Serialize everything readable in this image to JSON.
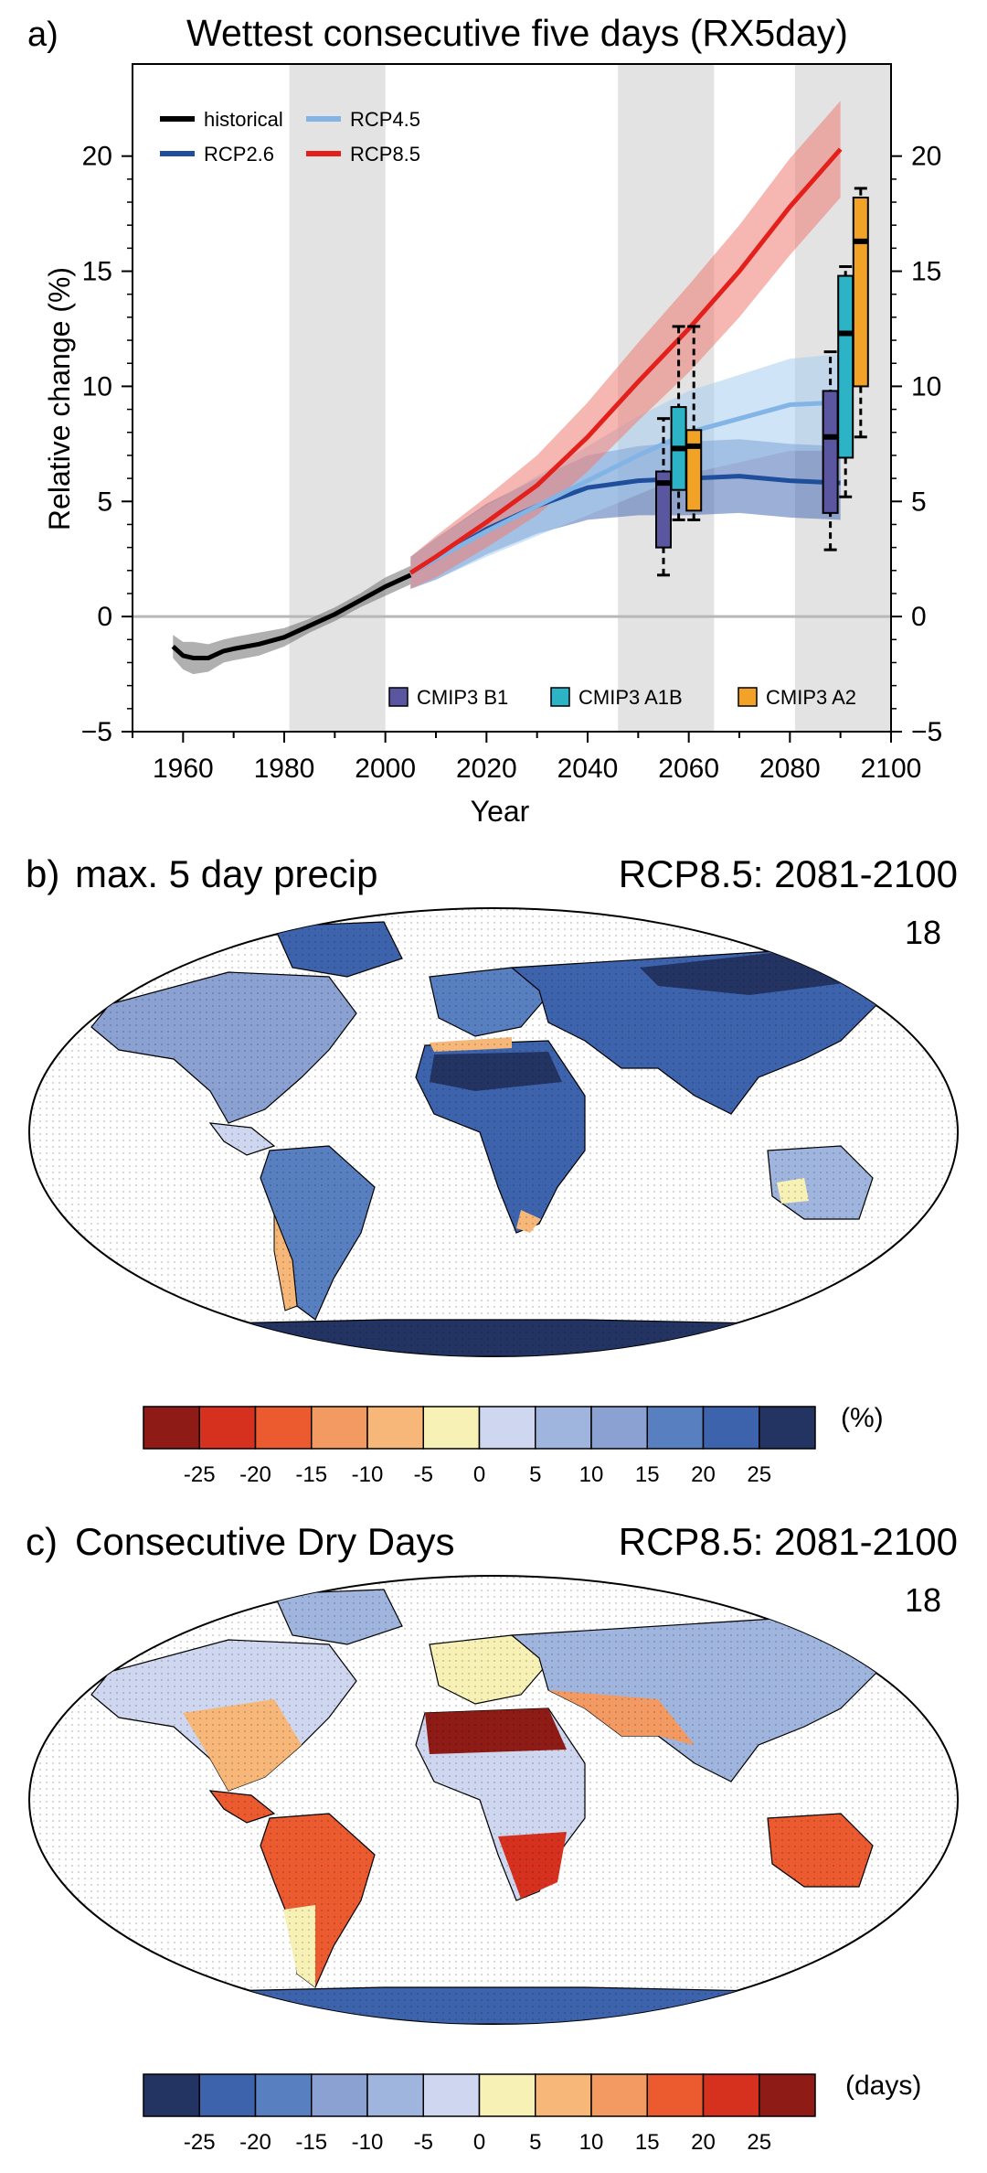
{
  "panel_a": {
    "label": "a)",
    "title": "Wettest consecutive five days (RX5day)",
    "ylabel": "Relative change (%)",
    "xlabel": "Year"
  },
  "panel_b": {
    "label": "b)",
    "title": "max. 5 day precip",
    "scenario": "RCP8.5: 2081-2100",
    "model_count": "18",
    "colorbar_unit": "(%)",
    "colorbar_ticks": [
      "-25",
      "-20",
      "-15",
      "-10",
      "-5",
      "0",
      "5",
      "10",
      "15",
      "20",
      "25"
    ],
    "colorbar_colors": [
      "#8e1b16",
      "#d6301f",
      "#ec5a30",
      "#f39962",
      "#f6b778",
      "#f7f1b5",
      "#ced7ef",
      "#9fb5de",
      "#8aa1d2",
      "#587fc0",
      "#3d63ad",
      "#233463"
    ]
  },
  "panel_c": {
    "label": "c)",
    "title": "Consecutive Dry Days",
    "scenario": "RCP8.5: 2081-2100",
    "model_count": "18",
    "colorbar_unit": "(days)",
    "colorbar_ticks": [
      "-25",
      "-20",
      "-15",
      "-10",
      "-5",
      "0",
      "5",
      "10",
      "15",
      "20",
      "25"
    ],
    "colorbar_colors": [
      "#233463",
      "#3d63ad",
      "#587fc0",
      "#8aa1d2",
      "#9fb5de",
      "#ced7ef",
      "#f7f1b5",
      "#f6b778",
      "#f39962",
      "#ec5a30",
      "#d6301f",
      "#8e1b16"
    ]
  },
  "chart_data": {
    "type": "line",
    "title": "Wettest consecutive five days (RX5day)",
    "xlabel": "Year",
    "ylabel": "Relative change (%)",
    "xlim": [
      1950,
      2100
    ],
    "ylim": [
      -5,
      24
    ],
    "x_ticks": [
      "1960",
      "1980",
      "2000",
      "2020",
      "2040",
      "2060",
      "2080",
      "2100"
    ],
    "y_ticks": [
      "-5",
      "0",
      "5",
      "10",
      "15",
      "20"
    ],
    "shaded_periods": [
      [
        1981,
        2000
      ],
      [
        2046,
        2065
      ],
      [
        2081,
        2100
      ]
    ],
    "zero_line": 0,
    "legend_position": "top-left",
    "series": [
      {
        "name": "historical",
        "color": "#000000",
        "band_color": "#707070",
        "x": [
          1958,
          1960,
          1962,
          1965,
          1968,
          1970,
          1975,
          1980,
          1985,
          1990,
          1995,
          2000,
          2005
        ],
        "y": [
          -1.3,
          -1.7,
          -1.8,
          -1.8,
          -1.5,
          -1.4,
          -1.2,
          -0.9,
          -0.4,
          0.1,
          0.7,
          1.3,
          1.8
        ],
        "spread": [
          0.5,
          0.6,
          0.7,
          0.6,
          0.5,
          0.5,
          0.5,
          0.4,
          0.3,
          0.3,
          0.3,
          0.4,
          0.4
        ]
      },
      {
        "name": "RCP2.6",
        "color": "#1f4e9c",
        "band_color": "#4a6fb6",
        "x": [
          2005,
          2010,
          2020,
          2030,
          2040,
          2050,
          2060,
          2070,
          2080,
          2090
        ],
        "y": [
          1.9,
          2.5,
          3.8,
          4.8,
          5.6,
          5.9,
          6.0,
          6.1,
          5.9,
          5.8
        ],
        "spread": [
          0.7,
          0.9,
          1.1,
          1.2,
          1.4,
          1.5,
          1.6,
          1.6,
          1.6,
          1.6
        ]
      },
      {
        "name": "RCP4.5",
        "color": "#82b4e6",
        "band_color": "#a9cdf0",
        "x": [
          2005,
          2010,
          2020,
          2030,
          2040,
          2050,
          2060,
          2070,
          2080,
          2090
        ],
        "y": [
          1.9,
          2.5,
          3.7,
          4.8,
          5.9,
          7.0,
          8.0,
          8.6,
          9.2,
          9.3
        ],
        "spread": [
          0.7,
          0.9,
          1.1,
          1.3,
          1.5,
          1.7,
          1.8,
          1.9,
          2.0,
          2.1
        ]
      },
      {
        "name": "RCP8.5",
        "color": "#e3201b",
        "band_color": "#ef7b72",
        "x": [
          2005,
          2010,
          2020,
          2030,
          2040,
          2050,
          2060,
          2070,
          2080,
          2090
        ],
        "y": [
          1.9,
          2.6,
          4.1,
          5.7,
          7.8,
          10.2,
          12.5,
          15.0,
          17.8,
          20.3
        ],
        "spread": [
          0.7,
          0.9,
          1.1,
          1.3,
          1.5,
          1.7,
          1.9,
          2.0,
          2.1,
          2.1
        ]
      }
    ],
    "boxes": [
      {
        "name": "CMIP3 B1",
        "color": "#5a56a0",
        "period": "2046-2065",
        "x": 2055,
        "whisker": [
          1.8,
          8.6
        ],
        "q": [
          3.0,
          6.3
        ],
        "median": 5.8
      },
      {
        "name": "CMIP3 A1B",
        "color": "#2cb3c5",
        "period": "2046-2065",
        "x": 2058,
        "whisker": [
          4.2,
          12.6
        ],
        "q": [
          5.5,
          9.1
        ],
        "median": 7.3
      },
      {
        "name": "CMIP3 A2",
        "color": "#f2a327",
        "period": "2046-2065",
        "x": 2061,
        "whisker": [
          4.2,
          12.6
        ],
        "q": [
          4.6,
          8.1
        ],
        "median": 7.4
      },
      {
        "name": "CMIP3 B1",
        "color": "#5a56a0",
        "period": "2081-2100",
        "x": 2088,
        "whisker": [
          2.9,
          11.5
        ],
        "q": [
          4.5,
          9.8
        ],
        "median": 7.8
      },
      {
        "name": "CMIP3 A1B",
        "color": "#2cb3c5",
        "period": "2081-2100",
        "x": 2091,
        "whisker": [
          5.2,
          15.2
        ],
        "q": [
          6.9,
          14.8
        ],
        "median": 12.3
      },
      {
        "name": "CMIP3 A2",
        "color": "#f2a327",
        "period": "2081-2100",
        "x": 2094,
        "whisker": [
          7.8,
          18.6
        ],
        "q": [
          10.0,
          18.2
        ],
        "median": 16.3
      }
    ],
    "box_legend": [
      "CMIP3 B1",
      "CMIP3 A1B",
      "CMIP3 A2"
    ]
  }
}
